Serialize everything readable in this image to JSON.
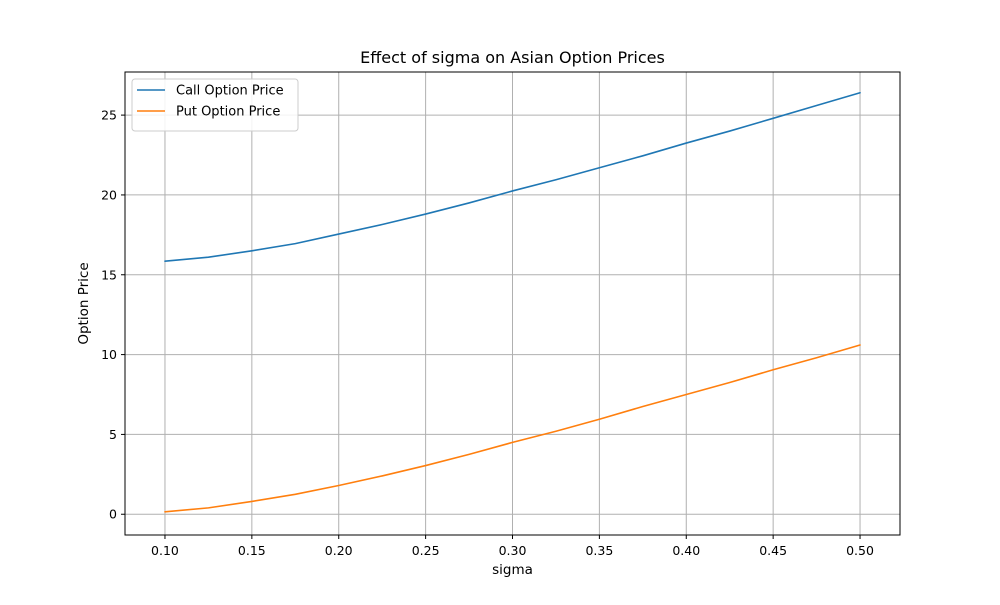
{
  "chart_data": {
    "type": "line",
    "title": "Effect of sigma on Asian Option Prices",
    "xlabel": "sigma",
    "ylabel": "Option Price",
    "xlim": [
      0.077,
      0.523
    ],
    "ylim": [
      -1.3,
      27.7
    ],
    "xticks": [
      0.1,
      0.15,
      0.2,
      0.25,
      0.3,
      0.35,
      0.4,
      0.45,
      0.5
    ],
    "xtick_labels": [
      "0.10",
      "0.15",
      "0.20",
      "0.25",
      "0.30",
      "0.35",
      "0.40",
      "0.45",
      "0.50"
    ],
    "yticks": [
      0,
      5,
      10,
      15,
      20,
      25
    ],
    "ytick_labels": [
      "0",
      "5",
      "10",
      "15",
      "20",
      "25"
    ],
    "grid": true,
    "legend_position": "top-left",
    "x": [
      0.1,
      0.125,
      0.15,
      0.175,
      0.2,
      0.225,
      0.25,
      0.275,
      0.3,
      0.325,
      0.35,
      0.375,
      0.4,
      0.425,
      0.45,
      0.475,
      0.5
    ],
    "series": [
      {
        "name": "Call Option Price",
        "color": "#1f77b4",
        "values": [
          15.85,
          16.1,
          16.5,
          16.95,
          17.55,
          18.15,
          18.8,
          19.5,
          20.25,
          20.95,
          21.7,
          22.45,
          23.25,
          24.0,
          24.8,
          25.6,
          26.4
        ]
      },
      {
        "name": "Put Option Price",
        "color": "#ff7f0e",
        "values": [
          0.15,
          0.4,
          0.8,
          1.25,
          1.8,
          2.4,
          3.05,
          3.75,
          4.5,
          5.2,
          5.95,
          6.75,
          7.5,
          8.25,
          9.05,
          9.8,
          10.6
        ]
      }
    ]
  }
}
